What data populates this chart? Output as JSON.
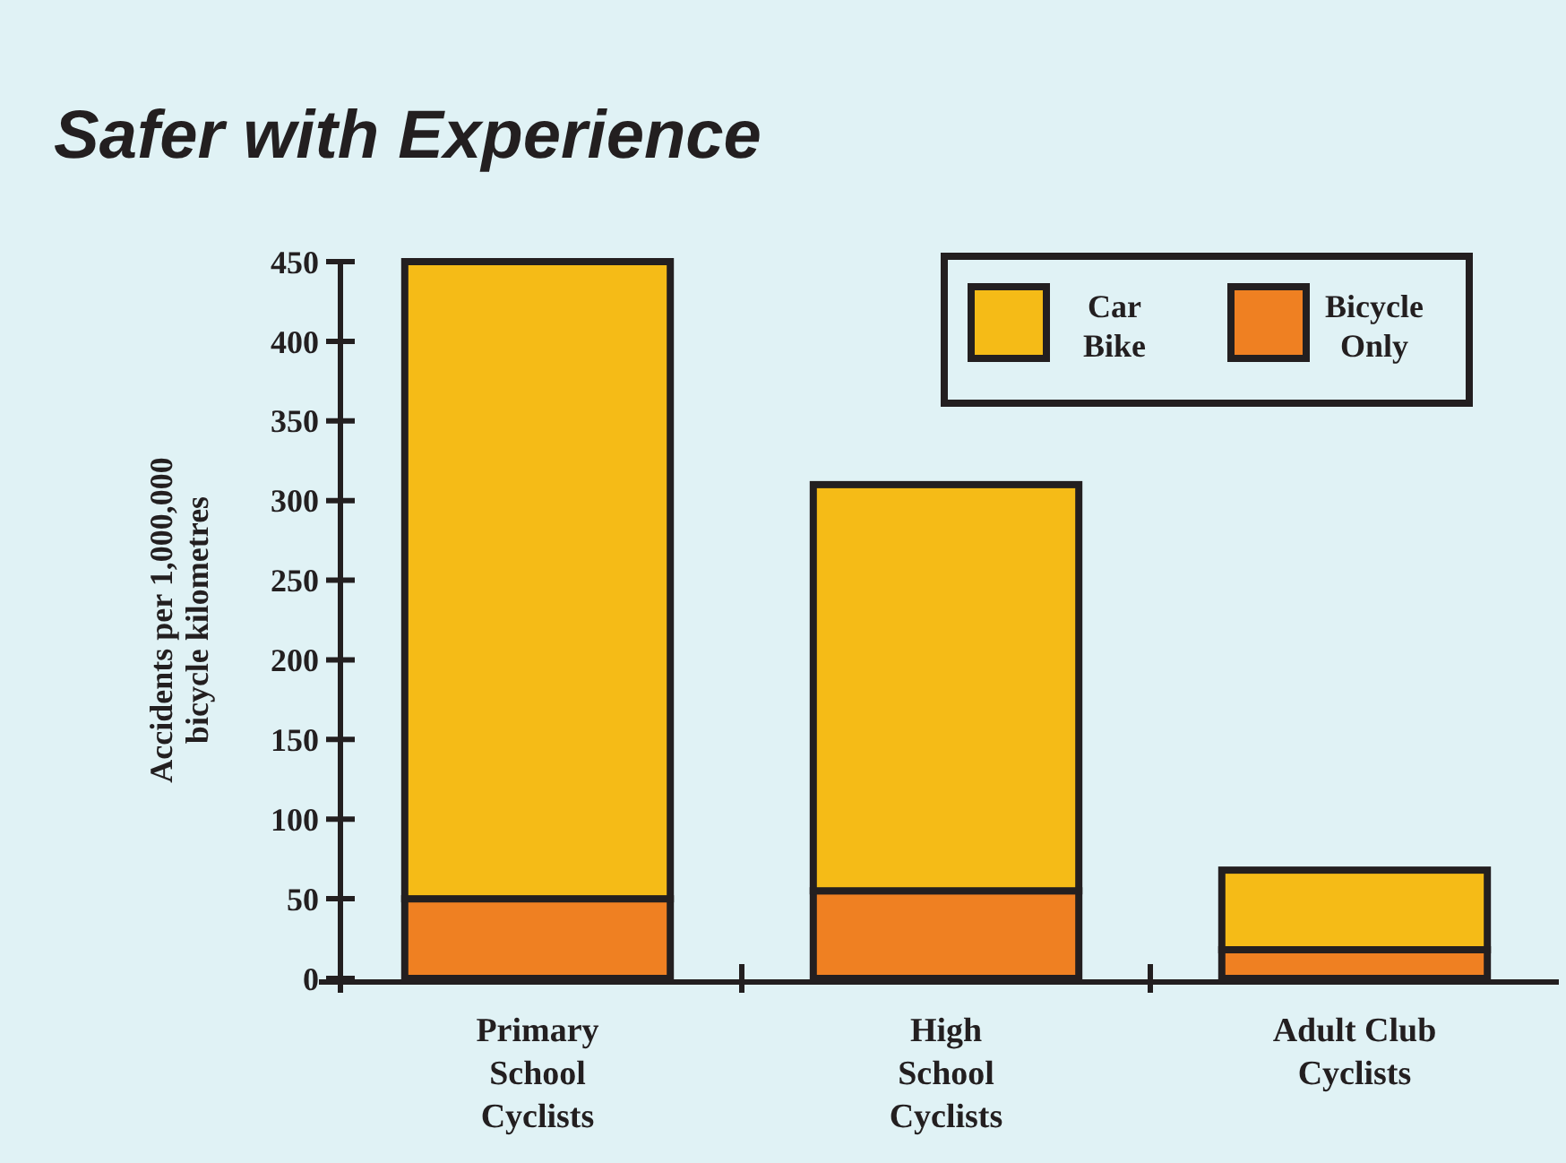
{
  "chart_data": {
    "type": "bar",
    "title": "Safer with Experience",
    "ylabel": "Accidents per 1,000,000\nbicycle kilometres",
    "categories": [
      "Primary\nSchool\nCyclists",
      "High\nSchool\nCyclists",
      "Adult Club\nCyclists"
    ],
    "stacked": true,
    "series": [
      {
        "name": "Bicycle Only",
        "color": "#ef8022",
        "values": [
          50,
          55,
          18
        ]
      },
      {
        "name": "Car Bike",
        "color": "#f5bb17",
        "values": [
          400,
          255,
          50
        ]
      }
    ],
    "ylim": [
      0,
      450
    ],
    "yticks": [
      0,
      50,
      100,
      150,
      200,
      250,
      300,
      350,
      400,
      450
    ],
    "grid": false,
    "legend": "top right"
  }
}
